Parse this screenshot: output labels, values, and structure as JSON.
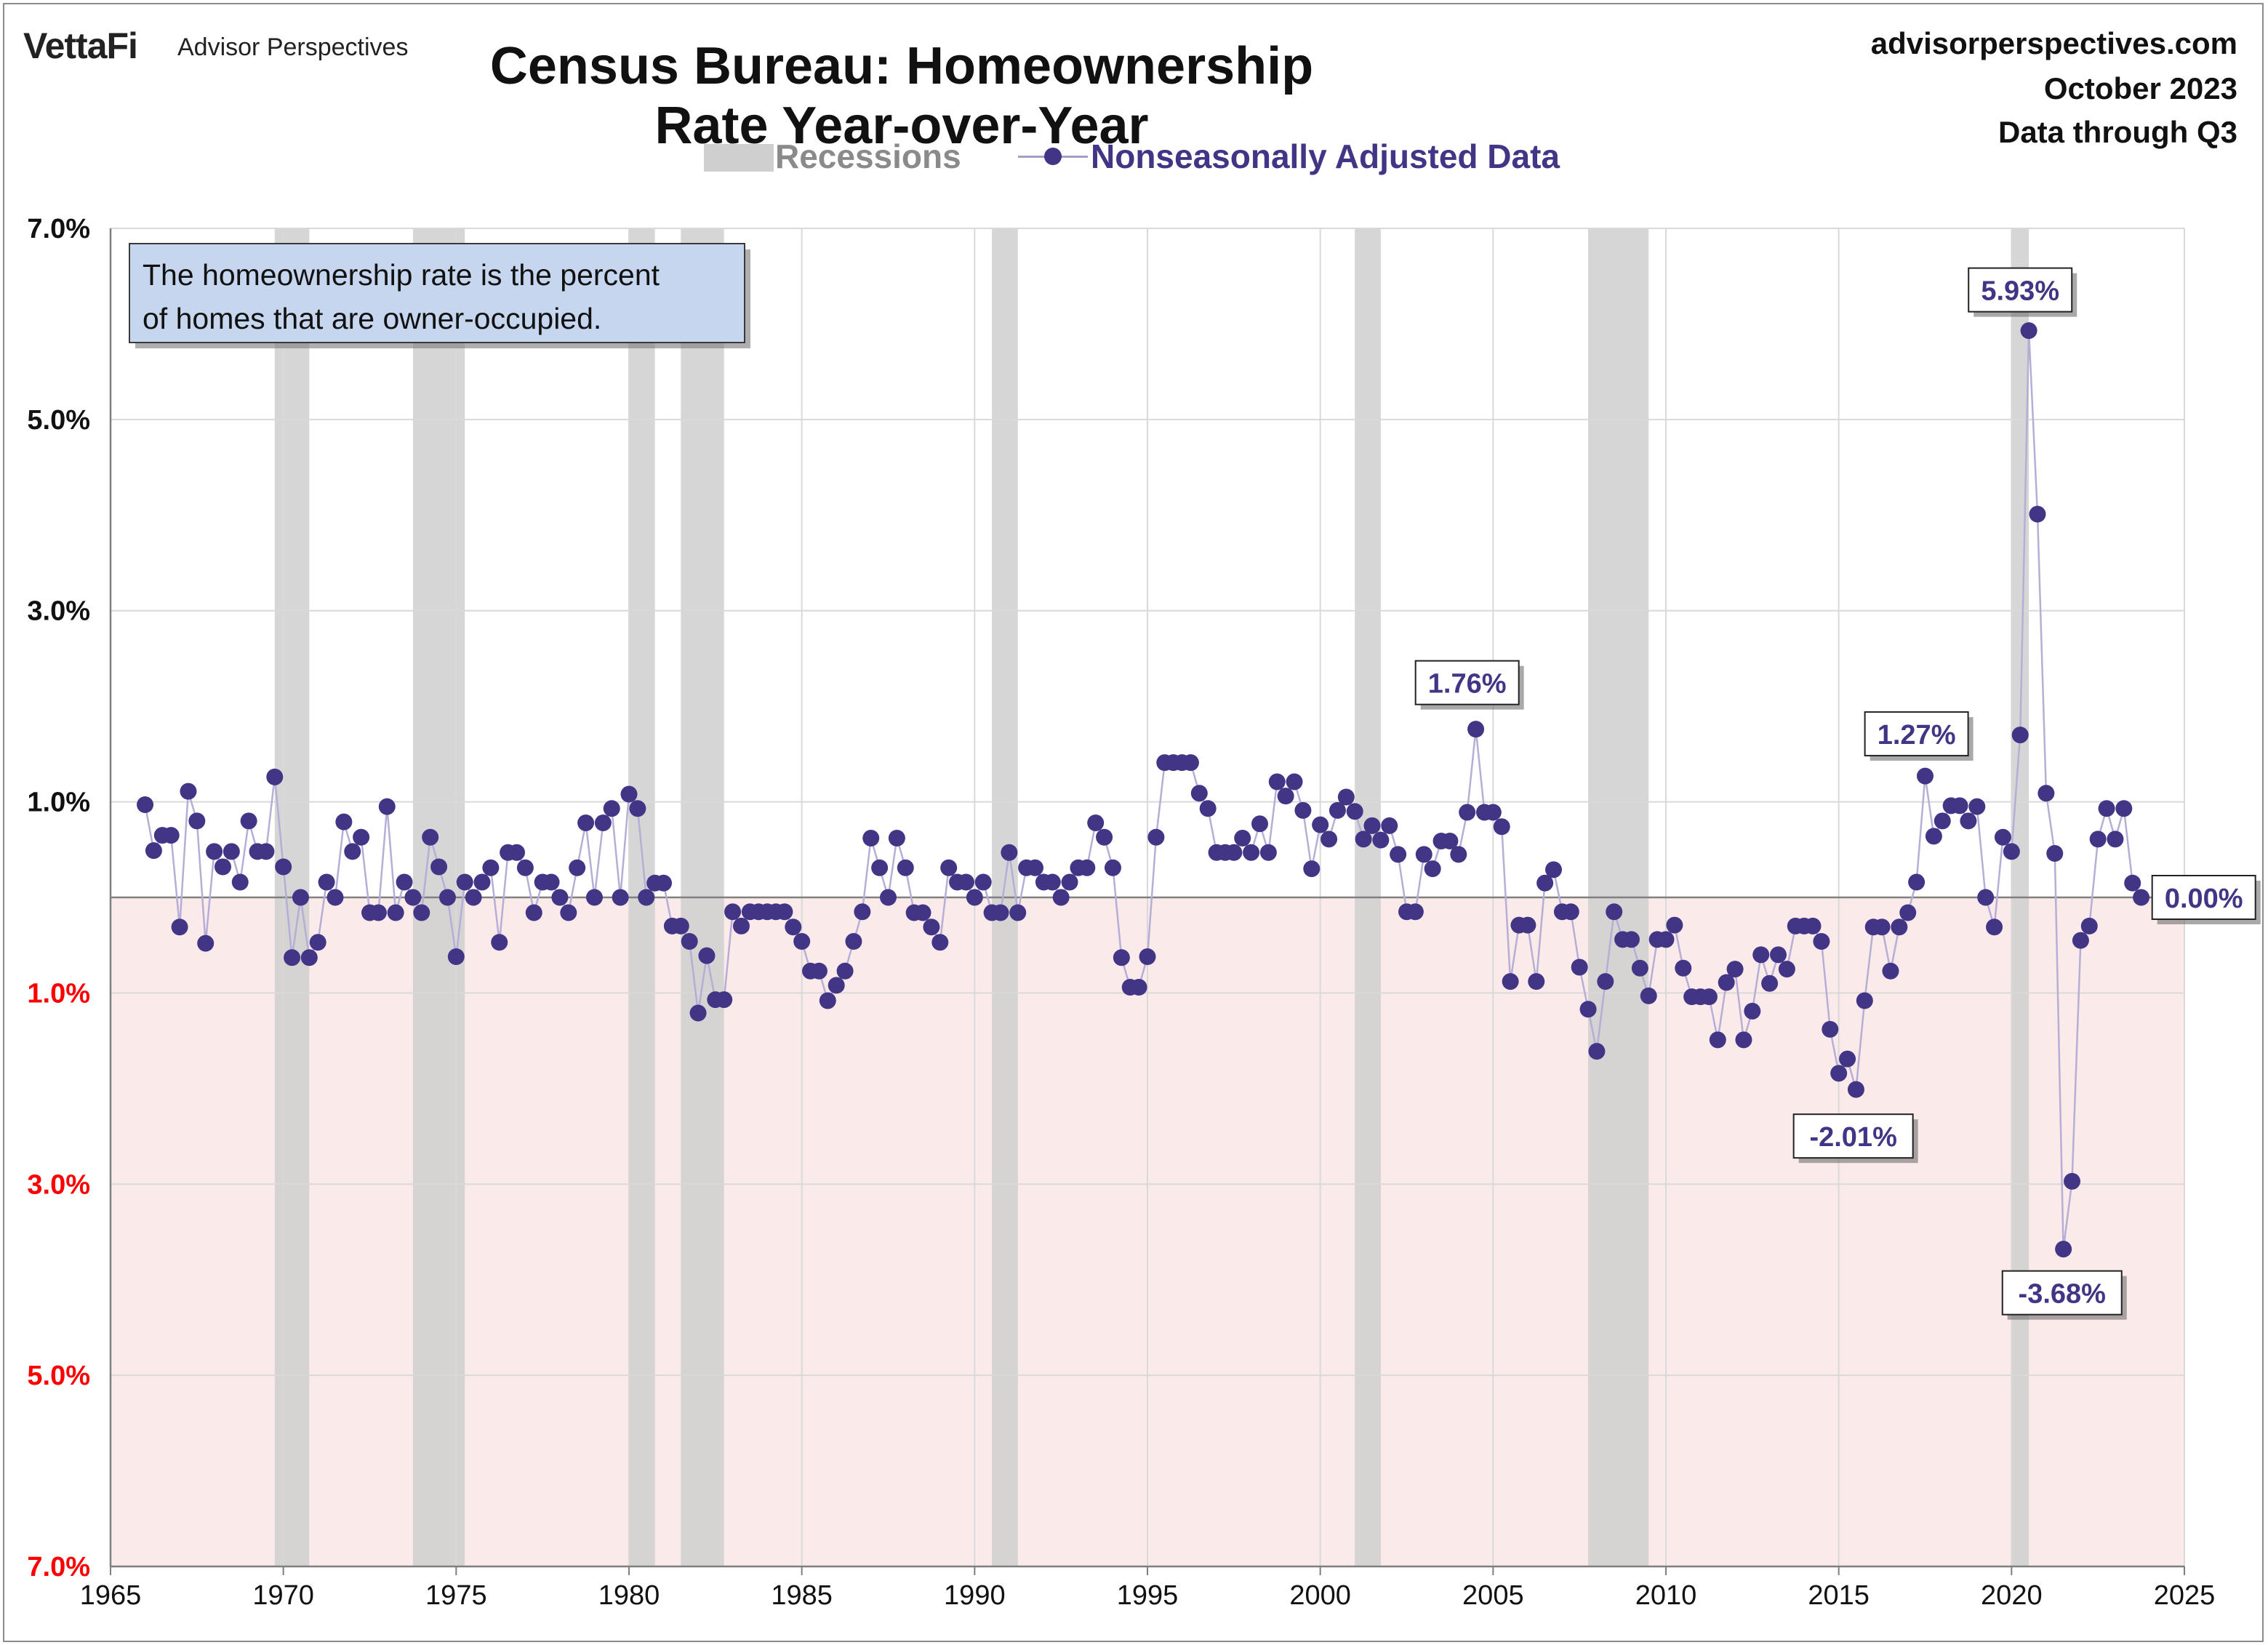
{
  "header": {
    "brand": "VettaFi",
    "brand_sub": "Advisor Perspectives",
    "title": "Census Bureau: Homeownership Rate Year-over-Year",
    "site": "advisorperspectives.com",
    "date": "October 2023",
    "data_through": "Data through Q3"
  },
  "legend": {
    "recessions": "Recessions",
    "series": "Nonseasonally Adjusted Data"
  },
  "note": {
    "line1": "The homeownership rate is the percent",
    "line2": "of homes that are owner-occupied."
  },
  "colors": {
    "series": "#433586",
    "series_line": "#b6aed6",
    "recession": "#cfcfcf",
    "negative_zone": "#fbeaea",
    "negative_tick": "#ff0000",
    "grid": "#d9d9d9"
  },
  "chart_data": {
    "type": "scatter",
    "title": "Census Bureau: Homeownership Rate Year-over-Year",
    "xlabel": "",
    "ylabel": "",
    "xlim": [
      1965,
      2025
    ],
    "ylim": [
      -7,
      7
    ],
    "x_ticks": [
      1965,
      1970,
      1975,
      1980,
      1985,
      1990,
      1995,
      2000,
      2005,
      2010,
      2015,
      2020,
      2025
    ],
    "x_tick_labels": [
      "1965",
      "1970",
      "1975",
      "1980",
      "1985",
      "1990",
      "1995",
      "2000",
      "2005",
      "2010",
      "2015",
      "2020",
      "2025"
    ],
    "y_ticks": [
      7,
      5,
      3,
      1,
      -1,
      -3,
      -5,
      -7
    ],
    "y_tick_labels": [
      "7.0%",
      "5.0%",
      "3.0%",
      "1.0%",
      "1.0%",
      "3.0%",
      "5.0%",
      "7.0%"
    ],
    "recessions": [
      [
        1969.75,
        1970.75
      ],
      [
        1973.75,
        1975.25
      ],
      [
        1980.0,
        1980.75
      ],
      [
        1981.5,
        1982.75
      ],
      [
        1990.5,
        1991.25
      ],
      [
        2001.0,
        2001.75
      ],
      [
        2007.75,
        2009.5
      ],
      [
        2020.0,
        2020.5
      ]
    ],
    "series": [
      {
        "name": "Nonseasonally Adjusted Data",
        "x_start": 1966.0,
        "x_step": 0.25,
        "values": [
          0.97,
          0.49,
          0.65,
          0.65,
          -0.31,
          1.11,
          0.8,
          -0.48,
          0.48,
          0.32,
          0.48,
          0.16,
          0.8,
          0.48,
          0.48,
          1.26,
          0.32,
          -0.63,
          0.0,
          -0.63,
          -0.47,
          0.16,
          0.0,
          0.79,
          0.48,
          0.63,
          -0.16,
          -0.16,
          0.95,
          -0.16,
          0.16,
          0.0,
          -0.16,
          0.63,
          0.32,
          0.0,
          -0.62,
          0.16,
          0.0,
          0.16,
          0.31,
          -0.47,
          0.47,
          0.47,
          0.31,
          -0.16,
          0.16,
          0.16,
          0.0,
          -0.16,
          0.31,
          0.78,
          0.0,
          0.78,
          0.93,
          0.0,
          1.08,
          0.93,
          0.0,
          0.15,
          0.15,
          -0.3,
          -0.3,
          -0.46,
          -1.21,
          -0.61,
          -1.07,
          -1.07,
          -0.15,
          -0.3,
          -0.15,
          -0.15,
          -0.15,
          -0.15,
          -0.15,
          -0.31,
          -0.46,
          -0.77,
          -0.77,
          -1.08,
          -0.92,
          -0.77,
          -0.46,
          -0.15,
          0.62,
          0.31,
          0.0,
          0.62,
          0.31,
          -0.16,
          -0.16,
          -0.31,
          -0.47,
          0.31,
          0.16,
          0.16,
          0.0,
          0.16,
          -0.16,
          -0.16,
          0.47,
          -0.16,
          0.31,
          0.31,
          0.16,
          0.16,
          0.0,
          0.16,
          0.31,
          0.31,
          0.78,
          0.63,
          0.31,
          -0.63,
          -0.94,
          -0.94,
          -0.62,
          0.63,
          1.41,
          1.41,
          1.41,
          1.41,
          1.09,
          0.93,
          0.47,
          0.47,
          0.47,
          0.62,
          0.47,
          0.77,
          0.47,
          1.21,
          1.06,
          1.21,
          0.91,
          0.3,
          0.76,
          0.61,
          0.91,
          1.05,
          0.9,
          0.61,
          0.75,
          0.6,
          0.75,
          0.45,
          -0.15,
          -0.15,
          0.45,
          0.3,
          0.59,
          0.59,
          0.45,
          0.89,
          1.76,
          0.89,
          0.89,
          0.74,
          -0.88,
          -0.29,
          -0.29,
          -0.88,
          0.15,
          0.29,
          -0.15,
          -0.15,
          -0.73,
          -1.17,
          -1.61,
          -0.88,
          -0.15,
          -0.44,
          -0.44,
          -0.74,
          -1.03,
          -0.44,
          -0.44,
          -0.29,
          -0.74,
          -1.04,
          -1.04,
          -1.04,
          -1.49,
          -0.89,
          -0.75,
          -1.49,
          -1.19,
          -0.6,
          -0.9,
          -0.6,
          -0.75,
          -0.3,
          -0.3,
          -0.3,
          -0.46,
          -1.38,
          -1.84,
          -1.69,
          -2.01,
          -1.08,
          -0.31,
          -0.31,
          -0.77,
          -0.31,
          -0.16,
          0.16,
          1.27,
          0.64,
          0.8,
          0.96,
          0.96,
          0.8,
          0.95,
          0.0,
          -0.31,
          0.63,
          0.48,
          1.7,
          5.93,
          4.01,
          1.09,
          0.46,
          -3.68,
          -2.97,
          -0.45,
          -0.3,
          0.61,
          0.93,
          0.61,
          0.93,
          0.15,
          0.0
        ]
      }
    ],
    "annotations": [
      {
        "label": "1.76%",
        "x": 2004.25,
        "y": 1.76
      },
      {
        "label": "1.27%",
        "x": 2017.25,
        "y": 1.27
      },
      {
        "label": "5.93%",
        "x": 2020.25,
        "y": 5.93
      },
      {
        "label": "-2.01%",
        "x": 2015.0,
        "y": -2.01
      },
      {
        "label": "-3.68%",
        "x": 2021.25,
        "y": -3.68
      },
      {
        "label": "0.00%",
        "x": 2023.5,
        "y": 0.0
      }
    ]
  }
}
